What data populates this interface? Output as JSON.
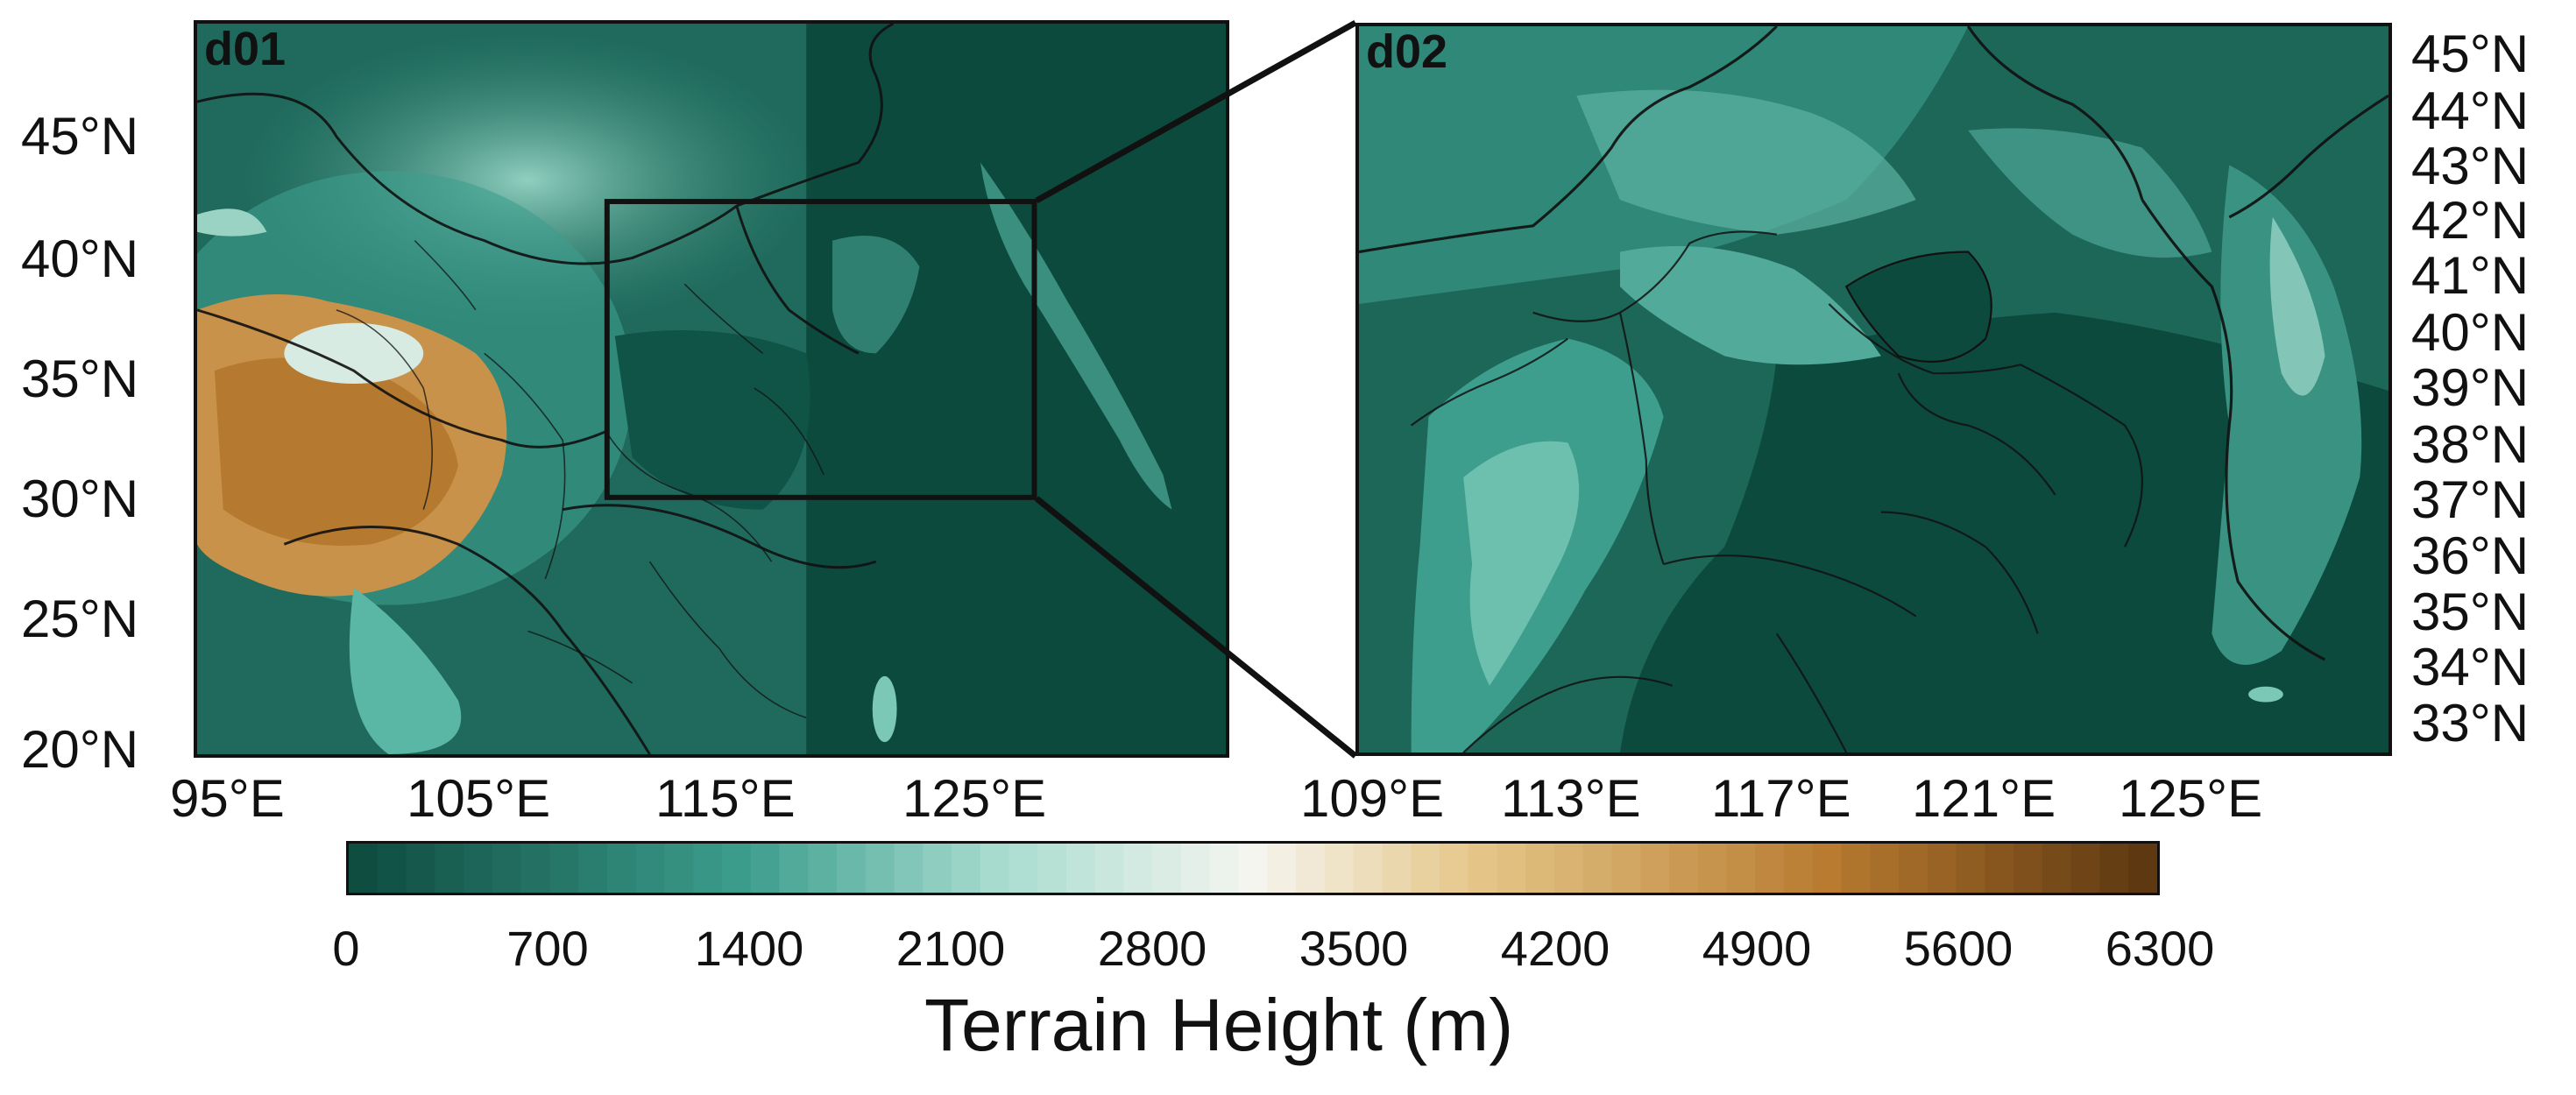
{
  "panels": {
    "d01": {
      "label": "d01",
      "lat_ticks": [
        "45°N",
        "40°N",
        "35°N",
        "30°N",
        "25°N",
        "20°N"
      ],
      "lon_ticks": [
        "95°E",
        "105°E",
        "115°E",
        "125°E"
      ]
    },
    "d02": {
      "label": "d02",
      "lat_ticks": [
        "45°N",
        "44°N",
        "43°N",
        "42°N",
        "41°N",
        "40°N",
        "39°N",
        "38°N",
        "37°N",
        "36°N",
        "35°N",
        "34°N",
        "33°N"
      ],
      "lon_ticks": [
        "109°E",
        "113°E",
        "117°E",
        "121°E",
        "125°E"
      ]
    }
  },
  "colorbar": {
    "title": "Terrain Height (m)",
    "ticks": [
      "0",
      "700",
      "1400",
      "2100",
      "2800",
      "3500",
      "4200",
      "4900",
      "5600",
      "6300"
    ],
    "min": 0,
    "max": 6300,
    "levels": 63,
    "colors": {
      "low": "#0d4a3e",
      "mid_low": "#3d9e8e",
      "light": "#a8dccf",
      "white": "#f5f5f0",
      "tan": "#e6c88a",
      "brown": "#b77a2f",
      "dark_brown": "#5a3510"
    }
  }
}
